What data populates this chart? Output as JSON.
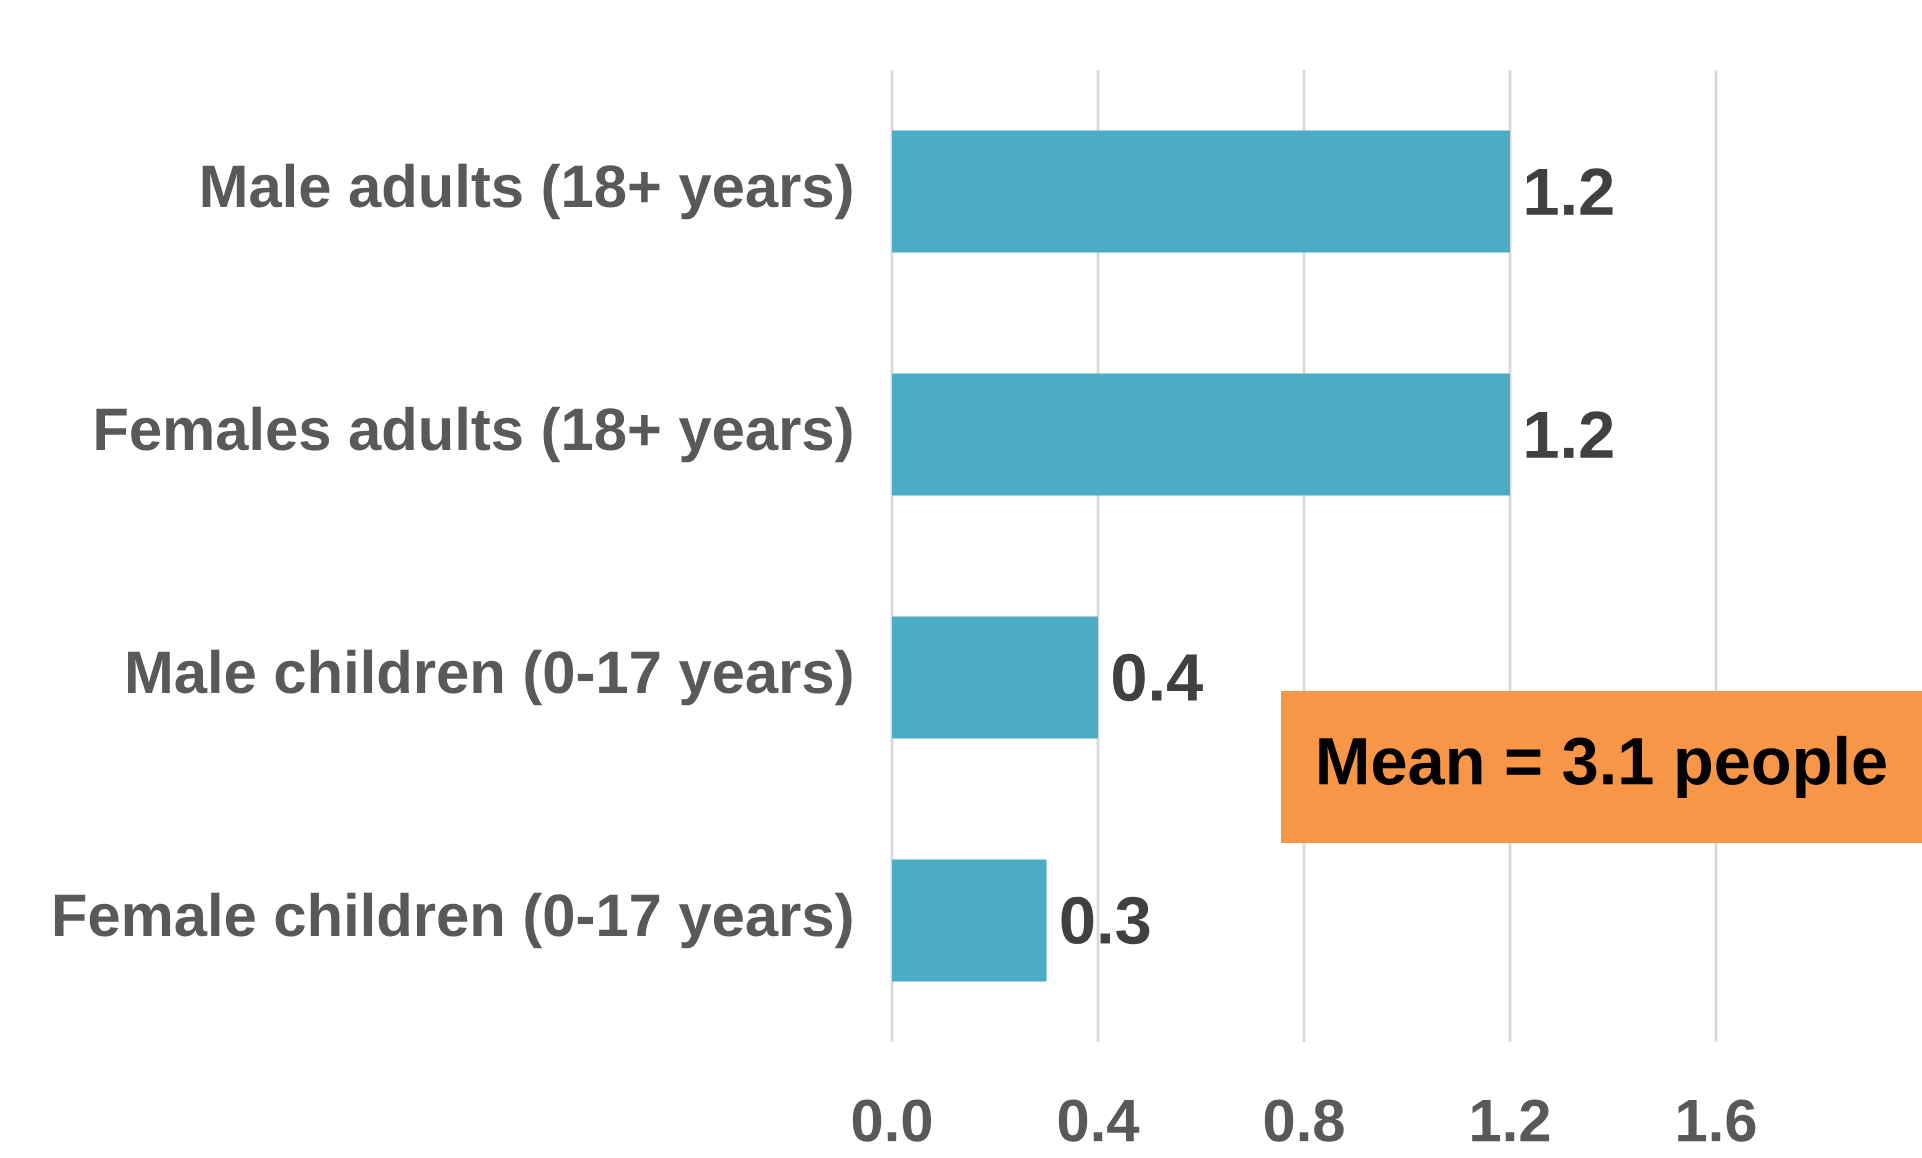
{
  "chart_data": {
    "type": "bar",
    "orientation": "horizontal",
    "categories": [
      "Male adults  (18+ years)",
      "Females adults (18+ years)",
      "Male children (0-17 years)",
      "Female children (0-17 years)"
    ],
    "values": [
      1.2,
      1.2,
      0.4,
      0.3
    ],
    "color": "#4bacc6",
    "xlim": [
      0,
      2
    ],
    "xticks": [
      {
        "value": 0,
        "label": "0.0"
      },
      {
        "value": 0.4,
        "label": "0.4"
      },
      {
        "value": 0.8,
        "label": "0.8"
      },
      {
        "value": 1.2,
        "label": "1.2"
      },
      {
        "value": 1.6,
        "label": "1.6"
      }
    ],
    "grid": "x",
    "data_labels": true,
    "annotations": [
      "Mean = 3.1 people"
    ]
  }
}
